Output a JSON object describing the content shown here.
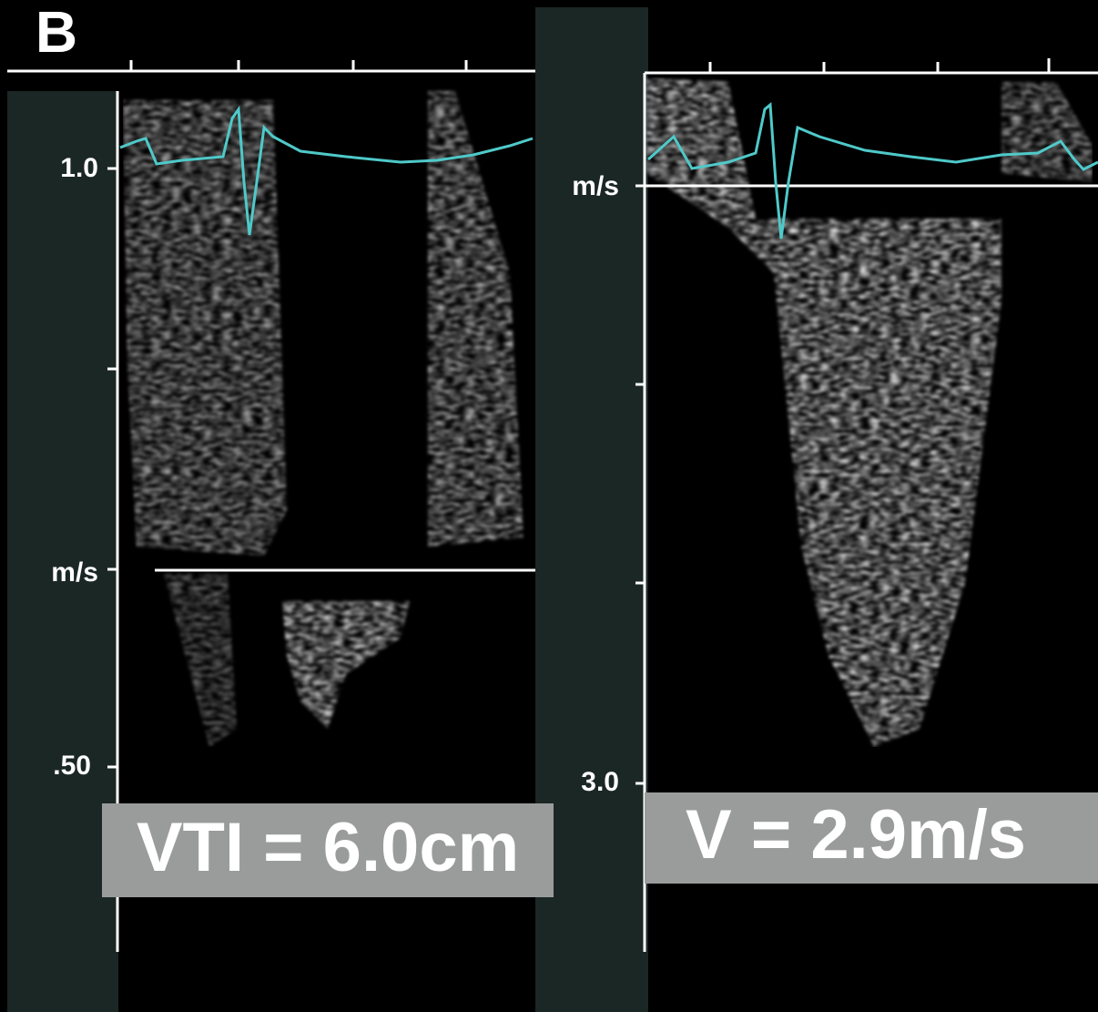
{
  "panel_label": "B",
  "left_panel": {
    "top_label": "1.0",
    "unit_label": "m/s",
    "bottom_label": ".50",
    "measurement": "VTI = 6.0cm"
  },
  "right_panel": {
    "unit_label": "m/s",
    "bottom_label": "3.0",
    "measurement": "V = 2.9m/s"
  }
}
